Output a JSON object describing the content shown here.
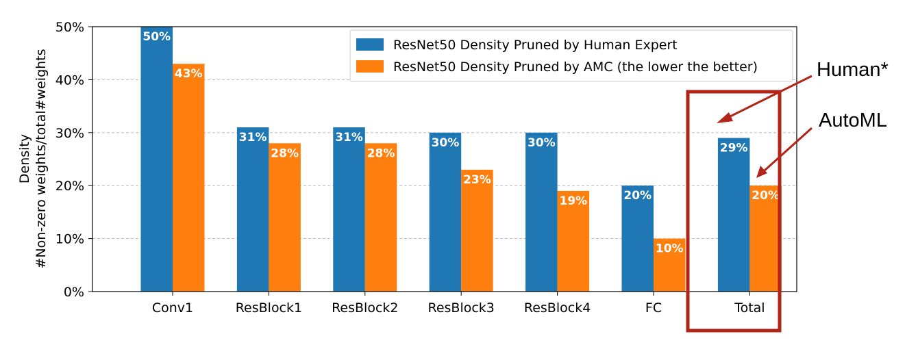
{
  "chart_data": {
    "type": "bar",
    "categories": [
      "Conv1",
      "ResBlock1",
      "ResBlock2",
      "ResBlock3",
      "ResBlock4",
      "FC",
      "Total"
    ],
    "series": [
      {
        "name": "ResNet50 Density Pruned by Human Expert",
        "values": [
          50,
          31,
          31,
          30,
          30,
          20,
          29
        ],
        "labels": [
          "50%",
          "31%",
          "31%",
          "30%",
          "30%",
          "20%",
          "29%"
        ],
        "color": "#1f77b4"
      },
      {
        "name": "ResNet50 Density Pruned by AMC (the lower the better)",
        "values": [
          43,
          28,
          28,
          23,
          19,
          10,
          20
        ],
        "labels": [
          "43%",
          "28%",
          "28%",
          "23%",
          "19%",
          "10%",
          "20%"
        ],
        "color": "#ff7f0e"
      }
    ],
    "ylabel_line1": "Density",
    "ylabel_line2": "#Non-zero weights/total#weights",
    "ylim": [
      0,
      50
    ],
    "yticks": [
      0,
      10,
      20,
      30,
      40,
      50
    ],
    "ytick_labels": [
      "0%",
      "10%",
      "20%",
      "30%",
      "40%",
      "50%"
    ],
    "grid": "horizontal dashed",
    "legend_position": "top-right"
  },
  "annotations": {
    "human_label": "Human*",
    "automl_label": "AutoML",
    "highlight_color": "#b22418"
  }
}
